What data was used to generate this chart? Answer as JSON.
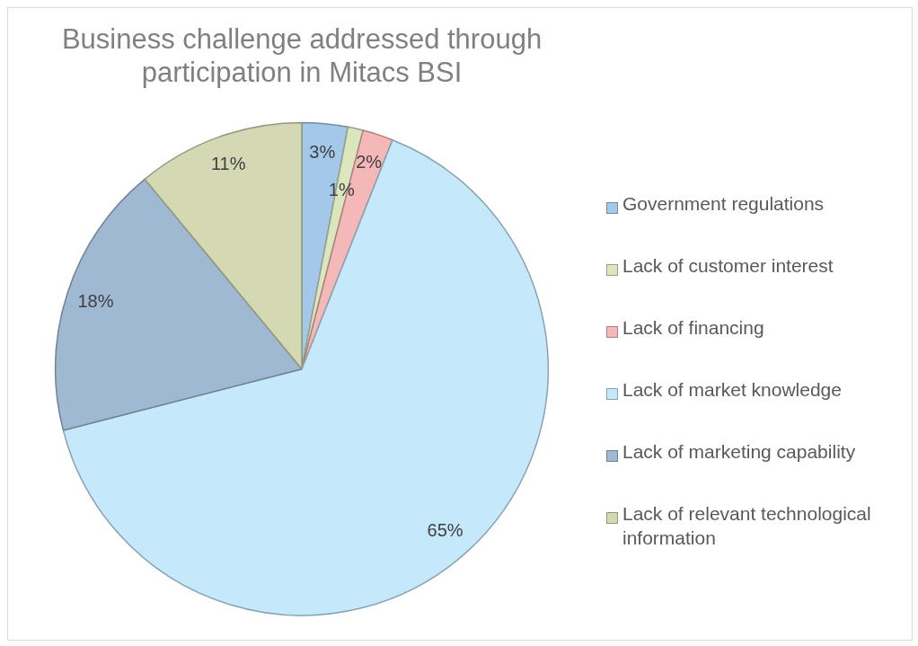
{
  "chart_data": {
    "type": "pie",
    "title": "Business challenge addressed through participation in Mitacs BSI",
    "categories": [
      "Government regulations",
      "Lack of customer interest",
      "Lack of financing",
      "Lack of market knowledge",
      "Lack of marketing capability",
      "Lack of relevant technological information"
    ],
    "values": [
      3,
      1,
      2,
      65,
      18,
      11
    ],
    "colors": [
      "#a3c8ea",
      "#dbe6bd",
      "#f5b8b8",
      "#c5e8fb",
      "#a0b9d3",
      "#d4d9b3"
    ],
    "value_labels": [
      "3%",
      "1%",
      "2%",
      "65%",
      "18%",
      "11%"
    ],
    "legend": "right"
  }
}
